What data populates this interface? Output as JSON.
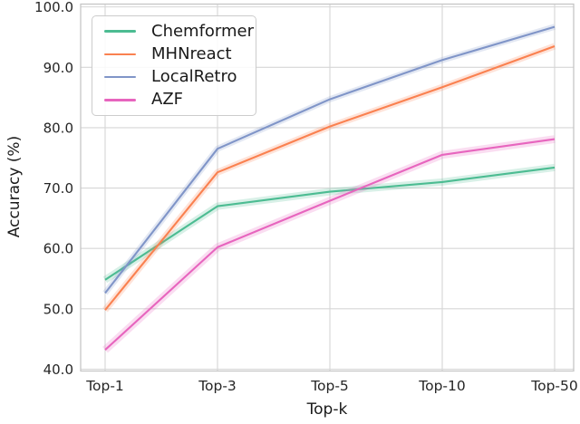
{
  "figure": {
    "kind": "seaborn-style line figure",
    "background": "#ffffff"
  },
  "chart_data": {
    "type": "line",
    "title": "",
    "xlabel": "Top-k",
    "ylabel": "Accuracy (%)",
    "categories": [
      "Top-1",
      "Top-3",
      "Top-5",
      "Top-10",
      "Top-50"
    ],
    "series": [
      {
        "name": "Chemformer",
        "color": "#4cbc92",
        "band_halfwidth": 0.6,
        "values": [
          54.8,
          67.0,
          69.4,
          71.0,
          73.4
        ]
      },
      {
        "name": "MHNreact",
        "color": "#fa8150",
        "band_halfwidth": 0.55,
        "values": [
          49.8,
          72.6,
          80.2,
          86.7,
          93.5
        ]
      },
      {
        "name": "LocalRetro",
        "color": "#8095c8",
        "band_halfwidth": 0.5,
        "values": [
          52.6,
          76.5,
          84.7,
          91.2,
          96.7
        ]
      },
      {
        "name": "AZF",
        "color": "#e765be",
        "band_halfwidth": 0.65,
        "values": [
          43.2,
          60.2,
          67.9,
          75.5,
          78.1
        ]
      }
    ],
    "yticks": [
      100,
      90,
      80,
      70,
      60,
      50,
      40
    ],
    "ytick_labels": [
      "100.0",
      "90.0",
      "80.0",
      "70.0",
      "60.0",
      "50.0",
      "40.0"
    ],
    "ylim": [
      39.7,
      100.47
    ],
    "grid": true,
    "legend_position": "upper left"
  },
  "colors": {
    "grid": "#d6d6d6",
    "spine": "#c6c6c6",
    "tick_text": "#262626",
    "axis_text": "#1a1a1a",
    "legend_border": "#cccccc"
  }
}
